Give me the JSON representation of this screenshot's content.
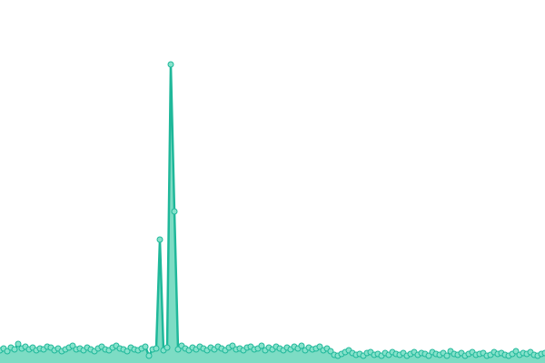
{
  "chart_data": {
    "type": "area",
    "line_color": "#1fb89a",
    "fill_color": "#7ddcc4",
    "marker_color": "#86e2cb",
    "ylim": [
      0,
      400
    ],
    "values": [
      14,
      16,
      13,
      17,
      15,
      21,
      16,
      18,
      15,
      17,
      14,
      16,
      15,
      18,
      17,
      14,
      16,
      13,
      15,
      17,
      19,
      15,
      16,
      14,
      17,
      15,
      13,
      16,
      18,
      15,
      14,
      17,
      19,
      16,
      15,
      13,
      17,
      15,
      14,
      16,
      18,
      8,
      15,
      16,
      136,
      14,
      17,
      329,
      167,
      15,
      19,
      16,
      14,
      17,
      15,
      18,
      16,
      14,
      17,
      15,
      18,
      16,
      14,
      17,
      19,
      15,
      16,
      14,
      17,
      18,
      15,
      16,
      19,
      14,
      17,
      15,
      18,
      16,
      14,
      17,
      15,
      18,
      16,
      19,
      14,
      17,
      15,
      16,
      18,
      14,
      16,
      13,
      9,
      8,
      10,
      12,
      14,
      11,
      9,
      10,
      8,
      11,
      12,
      9,
      10,
      8,
      11,
      9,
      12,
      10,
      9,
      11,
      8,
      10,
      12,
      9,
      11,
      10,
      8,
      12,
      10,
      9,
      11,
      8,
      13,
      10,
      9,
      11,
      8,
      10,
      12,
      9,
      10,
      11,
      8,
      9,
      12,
      10,
      11,
      9,
      8,
      10,
      13,
      9,
      11,
      10,
      12,
      9,
      8,
      10,
      11
    ]
  }
}
